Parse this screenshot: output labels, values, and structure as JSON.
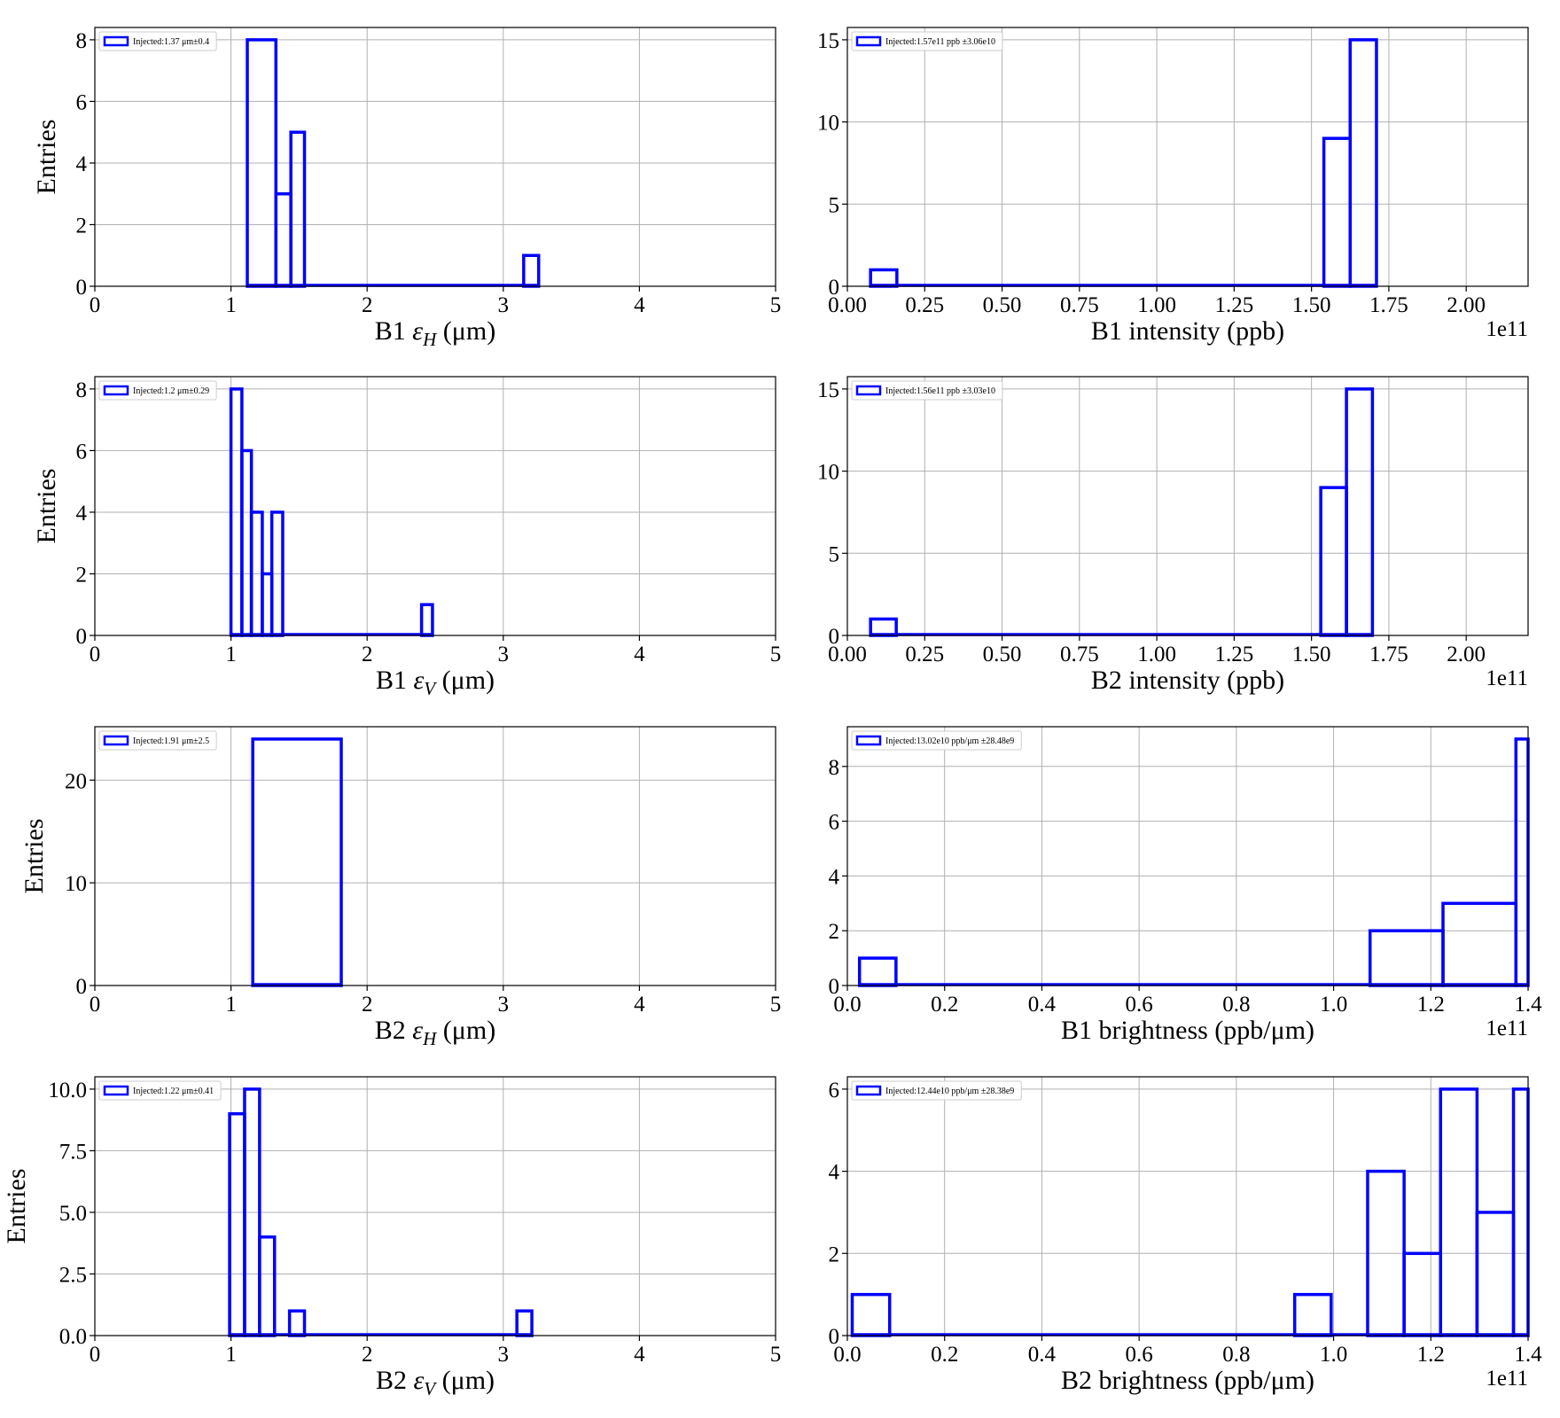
{
  "charts": [
    {
      "type": "histogram",
      "xlabel": "B1 εH (μm)",
      "ylabel": "Entries",
      "xlim": [
        0,
        5
      ],
      "ylim": [
        0,
        8.4
      ],
      "xticks": [
        0,
        1,
        2,
        3,
        4,
        5
      ],
      "xtick_labels": [
        "0",
        "1",
        "2",
        "3",
        "4",
        "5"
      ],
      "yticks": [
        0,
        2,
        4,
        6,
        8
      ],
      "ytick_labels": [
        "0",
        "2",
        "4",
        "6",
        "8"
      ],
      "legend": "Injected:1.37 μm±0.4",
      "offset_text": "",
      "bins": [
        [
          1.12,
          1.33,
          8
        ],
        [
          1.33,
          1.44,
          3
        ],
        [
          1.44,
          1.54,
          5
        ],
        [
          3.15,
          3.26,
          1
        ]
      ]
    },
    {
      "type": "histogram",
      "xlabel": "B1 intensity (ppb)",
      "ylabel": "",
      "xlim": [
        0,
        2.2
      ],
      "ylim": [
        0,
        15.75
      ],
      "xticks": [
        0,
        0.25,
        0.5,
        0.75,
        1.0,
        1.25,
        1.5,
        1.75,
        2.0
      ],
      "xtick_labels": [
        "0.00",
        "0.25",
        "0.50",
        "0.75",
        "1.00",
        "1.25",
        "1.50",
        "1.75",
        "2.00"
      ],
      "yticks": [
        0,
        5,
        10,
        15
      ],
      "ytick_labels": [
        "0",
        "5",
        "10",
        "15"
      ],
      "legend": "Injected:1.57e11 ppb ±3.06e10",
      "offset_text": "1e11",
      "bins": [
        [
          0.075,
          0.16,
          1
        ],
        [
          1.54,
          1.625,
          9
        ],
        [
          1.625,
          1.71,
          15
        ]
      ]
    },
    {
      "type": "histogram",
      "xlabel": "B1 εV (μm)",
      "ylabel": "Entries",
      "xlim": [
        0,
        5
      ],
      "ylim": [
        0,
        8.4
      ],
      "xticks": [
        0,
        1,
        2,
        3,
        4,
        5
      ],
      "xtick_labels": [
        "0",
        "1",
        "2",
        "3",
        "4",
        "5"
      ],
      "yticks": [
        0,
        2,
        4,
        6,
        8
      ],
      "ytick_labels": [
        "0",
        "2",
        "4",
        "6",
        "8"
      ],
      "legend": "Injected:1.2 μm±0.29",
      "offset_text": "",
      "bins": [
        [
          1.0,
          1.08,
          8
        ],
        [
          1.08,
          1.15,
          6
        ],
        [
          1.15,
          1.23,
          4
        ],
        [
          1.23,
          1.3,
          2
        ],
        [
          1.3,
          1.38,
          4
        ],
        [
          2.4,
          2.48,
          1
        ]
      ]
    },
    {
      "type": "histogram",
      "xlabel": "B2 intensity (ppb)",
      "ylabel": "",
      "xlim": [
        0,
        2.2
      ],
      "ylim": [
        0,
        15.75
      ],
      "xticks": [
        0,
        0.25,
        0.5,
        0.75,
        1.0,
        1.25,
        1.5,
        1.75,
        2.0
      ],
      "xtick_labels": [
        "0.00",
        "0.25",
        "0.50",
        "0.75",
        "1.00",
        "1.25",
        "1.50",
        "1.75",
        "2.00"
      ],
      "yticks": [
        0,
        5,
        10,
        15
      ],
      "ytick_labels": [
        "0",
        "5",
        "10",
        "15"
      ],
      "legend": "Injected:1.56e11 ppb ±3.03e10",
      "offset_text": "1e11",
      "bins": [
        [
          0.075,
          0.158,
          1
        ],
        [
          1.53,
          1.613,
          9
        ],
        [
          1.613,
          1.697,
          15
        ]
      ]
    },
    {
      "type": "histogram",
      "xlabel": "B2 εH (μm)",
      "ylabel": "Entries",
      "xlim": [
        0,
        5
      ],
      "ylim": [
        0,
        25.2
      ],
      "xticks": [
        0,
        1,
        2,
        3,
        4,
        5
      ],
      "xtick_labels": [
        "0",
        "1",
        "2",
        "3",
        "4",
        "5"
      ],
      "yticks": [
        0,
        10,
        20
      ],
      "ytick_labels": [
        "0",
        "10",
        "20"
      ],
      "legend": "Injected:1.91 μm±2.5",
      "offset_text": "",
      "bins": [
        [
          1.16,
          1.81,
          24
        ]
      ]
    },
    {
      "type": "histogram",
      "xlabel": "B1 brightness (ppb/μm)",
      "ylabel": "",
      "xlim": [
        0,
        1.4
      ],
      "ylim": [
        0,
        9.45
      ],
      "xticks": [
        0,
        0.2,
        0.4,
        0.6,
        0.8,
        1.0,
        1.2,
        1.4
      ],
      "xtick_labels": [
        "0.0",
        "0.2",
        "0.4",
        "0.6",
        "0.8",
        "1.0",
        "1.2",
        "1.4"
      ],
      "yticks": [
        0,
        2,
        4,
        6,
        8
      ],
      "ytick_labels": [
        "0",
        "2",
        "4",
        "6",
        "8"
      ],
      "legend": "Injected:13.02e10 ppb/μm ±28.48e9",
      "offset_text": "1e11",
      "bins": [
        [
          0.025,
          0.1,
          1
        ],
        [
          1.075,
          1.225,
          2
        ],
        [
          1.225,
          1.375,
          3
        ],
        [
          1.375,
          1.4,
          9
        ]
      ]
    },
    {
      "type": "histogram",
      "xlabel": "B2 εV (μm)",
      "ylabel": "Entries",
      "xlim": [
        0,
        5
      ],
      "ylim": [
        0,
        10.5
      ],
      "xticks": [
        0,
        1,
        2,
        3,
        4,
        5
      ],
      "xtick_labels": [
        "0",
        "1",
        "2",
        "3",
        "4",
        "5"
      ],
      "yticks": [
        0,
        2.5,
        5.0,
        7.5,
        10.0
      ],
      "ytick_labels": [
        "0.0",
        "2.5",
        "5.0",
        "7.5",
        "10.0"
      ],
      "legend": "Injected:1.22 μm±0.41",
      "offset_text": "",
      "bins": [
        [
          0.99,
          1.1,
          9
        ],
        [
          1.1,
          1.21,
          10
        ],
        [
          1.21,
          1.32,
          4
        ],
        [
          1.43,
          1.54,
          1
        ],
        [
          3.1,
          3.21,
          1
        ]
      ]
    },
    {
      "type": "histogram",
      "xlabel": "B2 brightness (ppb/μm)",
      "ylabel": "",
      "xlim": [
        0,
        1.4
      ],
      "ylim": [
        0,
        6.3
      ],
      "xticks": [
        0,
        0.2,
        0.4,
        0.6,
        0.8,
        1.0,
        1.2,
        1.4
      ],
      "xtick_labels": [
        "0.0",
        "0.2",
        "0.4",
        "0.6",
        "0.8",
        "1.0",
        "1.2",
        "1.4"
      ],
      "yticks": [
        0,
        2,
        4,
        6
      ],
      "ytick_labels": [
        "0",
        "2",
        "4",
        "6"
      ],
      "legend": "Injected:12.44e10 ppb/μm ±28.38e9",
      "offset_text": "1e11",
      "bins": [
        [
          0.01,
          0.087,
          1
        ],
        [
          0.92,
          0.995,
          1
        ],
        [
          1.07,
          1.145,
          4
        ],
        [
          1.145,
          1.22,
          2
        ],
        [
          1.22,
          1.295,
          6
        ],
        [
          1.295,
          1.37,
          3
        ],
        [
          1.37,
          1.4,
          6
        ]
      ]
    }
  ],
  "colors": {
    "series": "#0000ff",
    "grid": "#b0b0b0",
    "axes": "#000000"
  },
  "chart_data": [
    {
      "type": "bar",
      "xlabel": "B1 εH (μm)",
      "ylabel": "Entries",
      "legend": [
        "Injected:1.37 μm±0.4"
      ],
      "ylim": [
        0,
        8.4
      ],
      "xlim": [
        0,
        5
      ],
      "bins": [
        [
          1.12,
          1.33,
          8
        ],
        [
          1.33,
          1.44,
          3
        ],
        [
          1.44,
          1.54,
          5
        ],
        [
          3.15,
          3.26,
          1
        ]
      ]
    },
    {
      "type": "bar",
      "xlabel": "B1 intensity (ppb)",
      "ylabel": "",
      "legend": [
        "Injected:1.57e11 ppb ±3.06e10"
      ],
      "x_scale_offset": "1e11",
      "xlim": [
        0,
        2.2
      ],
      "ylim": [
        0,
        15.75
      ],
      "bins": [
        [
          0.075,
          0.16,
          1
        ],
        [
          1.54,
          1.625,
          9
        ],
        [
          1.625,
          1.71,
          15
        ]
      ]
    },
    {
      "type": "bar",
      "xlabel": "B1 εV (μm)",
      "ylabel": "Entries",
      "legend": [
        "Injected:1.2 μm±0.29"
      ],
      "xlim": [
        0,
        5
      ],
      "ylim": [
        0,
        8.4
      ],
      "bins": [
        [
          1.0,
          1.08,
          8
        ],
        [
          1.08,
          1.15,
          6
        ],
        [
          1.15,
          1.23,
          4
        ],
        [
          1.23,
          1.3,
          2
        ],
        [
          1.3,
          1.38,
          4
        ],
        [
          2.4,
          2.48,
          1
        ]
      ]
    },
    {
      "type": "bar",
      "xlabel": "B2 intensity (ppb)",
      "ylabel": "",
      "legend": [
        "Injected:1.56e11 ppb ±3.03e10"
      ],
      "x_scale_offset": "1e11",
      "xlim": [
        0,
        2.2
      ],
      "ylim": [
        0,
        15.75
      ],
      "bins": [
        [
          0.075,
          0.158,
          1
        ],
        [
          1.53,
          1.613,
          9
        ],
        [
          1.613,
          1.697,
          15
        ]
      ]
    },
    {
      "type": "bar",
      "xlabel": "B2 εH (μm)",
      "ylabel": "Entries",
      "legend": [
        "Injected:1.91 μm±2.5"
      ],
      "xlim": [
        0,
        5
      ],
      "ylim": [
        0,
        25.2
      ],
      "bins": [
        [
          1.16,
          1.81,
          24
        ]
      ]
    },
    {
      "type": "bar",
      "xlabel": "B1 brightness (ppb/μm)",
      "ylabel": "",
      "legend": [
        "Injected:13.02e10 ppb/μm ±28.48e9"
      ],
      "x_scale_offset": "1e11",
      "xlim": [
        0,
        1.4
      ],
      "ylim": [
        0,
        9.45
      ],
      "bins": [
        [
          0.025,
          0.1,
          1
        ],
        [
          1.075,
          1.225,
          2
        ],
        [
          1.225,
          1.375,
          3
        ],
        [
          1.375,
          1.4,
          9
        ]
      ]
    },
    {
      "type": "bar",
      "xlabel": "B2 εV (μm)",
      "ylabel": "Entries",
      "legend": [
        "Injected:1.22 μm±0.41"
      ],
      "xlim": [
        0,
        5
      ],
      "ylim": [
        0,
        10.5
      ],
      "bins": [
        [
          0.99,
          1.1,
          9
        ],
        [
          1.1,
          1.21,
          10
        ],
        [
          1.21,
          1.32,
          4
        ],
        [
          1.43,
          1.54,
          1
        ],
        [
          3.1,
          3.21,
          1
        ]
      ]
    },
    {
      "type": "bar",
      "xlabel": "B2 brightness (ppb/μm)",
      "ylabel": "",
      "legend": [
        "Injected:12.44e10 ppb/μm ±28.38e9"
      ],
      "x_scale_offset": "1e11",
      "xlim": [
        0,
        1.4
      ],
      "ylim": [
        0,
        6.3
      ],
      "bins": [
        [
          0.01,
          0.087,
          1
        ],
        [
          0.92,
          0.995,
          1
        ],
        [
          1.07,
          1.145,
          4
        ],
        [
          1.145,
          1.22,
          2
        ],
        [
          1.22,
          1.295,
          6
        ],
        [
          1.295,
          1.37,
          3
        ],
        [
          1.37,
          1.4,
          6
        ]
      ]
    }
  ]
}
